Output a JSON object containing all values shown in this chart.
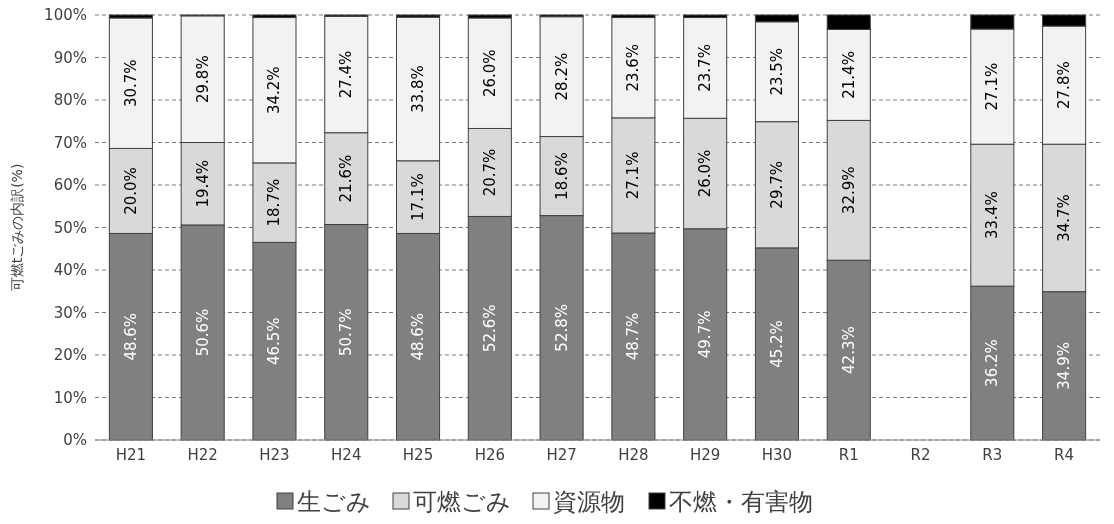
{
  "chart_data": {
    "type": "bar",
    "stacked": true,
    "ylabel": "可燃tごみの内訳(%)",
    "categories": [
      "H21",
      "H22",
      "H23",
      "H24",
      "H25",
      "H26",
      "H27",
      "H28",
      "H29",
      "H30",
      "R1",
      "R2",
      "R3",
      "R4"
    ],
    "series": [
      {
        "name": "生ごみ",
        "color": "#808080",
        "values": [
          48.6,
          50.6,
          46.5,
          50.7,
          48.6,
          52.6,
          52.8,
          48.7,
          49.7,
          45.2,
          42.3,
          null,
          36.2,
          34.9
        ],
        "value_labels": [
          "48.6%",
          "50.6%",
          "46.5%",
          "50.7%",
          "48.6%",
          "52.6%",
          "52.8%",
          "48.7%",
          "49.7%",
          "45.2%",
          "42.3%",
          null,
          "36.2%",
          "34.9%"
        ]
      },
      {
        "name": "可燃ごみ",
        "color": "#d9d9d9",
        "values": [
          20.0,
          19.4,
          18.7,
          21.6,
          17.1,
          20.7,
          18.6,
          27.1,
          26.0,
          29.7,
          32.9,
          null,
          33.4,
          34.7
        ],
        "value_labels": [
          "20.0%",
          "19.4%",
          "18.7%",
          "21.6%",
          "17.1%",
          "20.7%",
          "18.6%",
          "27.1%",
          "26.0%",
          "29.7%",
          "32.9%",
          null,
          "33.4%",
          "34.7%"
        ]
      },
      {
        "name": "資源物",
        "color": "#f2f2f2",
        "values": [
          30.7,
          29.8,
          34.2,
          27.4,
          33.8,
          26.0,
          28.2,
          23.6,
          23.7,
          23.5,
          21.4,
          null,
          27.1,
          27.8
        ],
        "value_labels": [
          "30.7%",
          "29.8%",
          "34.2%",
          "27.4%",
          "33.8%",
          "26.0%",
          "28.2%",
          "23.6%",
          "23.7%",
          "23.5%",
          "21.4%",
          null,
          "27.1%",
          "27.8%"
        ]
      },
      {
        "name": "不燃・有害物",
        "color": "#000000",
        "values": [
          0.7,
          0.2,
          0.6,
          0.3,
          0.5,
          0.7,
          0.4,
          0.6,
          0.6,
          1.6,
          3.4,
          null,
          3.3,
          2.6
        ]
      }
    ],
    "ylim": [
      0,
      100
    ],
    "yticks": [
      {
        "value": 0,
        "label": "0%"
      },
      {
        "value": 10,
        "label": "10%"
      },
      {
        "value": 20,
        "label": "20%"
      },
      {
        "value": 30,
        "label": "30%"
      },
      {
        "value": 40,
        "label": "40%"
      },
      {
        "value": 50,
        "label": "50%"
      },
      {
        "value": 60,
        "label": "60%"
      },
      {
        "value": 70,
        "label": "70%"
      },
      {
        "value": 80,
        "label": "80%"
      },
      {
        "value": 90,
        "label": "90%"
      },
      {
        "value": 100,
        "label": "100%"
      }
    ],
    "grid": "y",
    "legend": "bottom"
  }
}
